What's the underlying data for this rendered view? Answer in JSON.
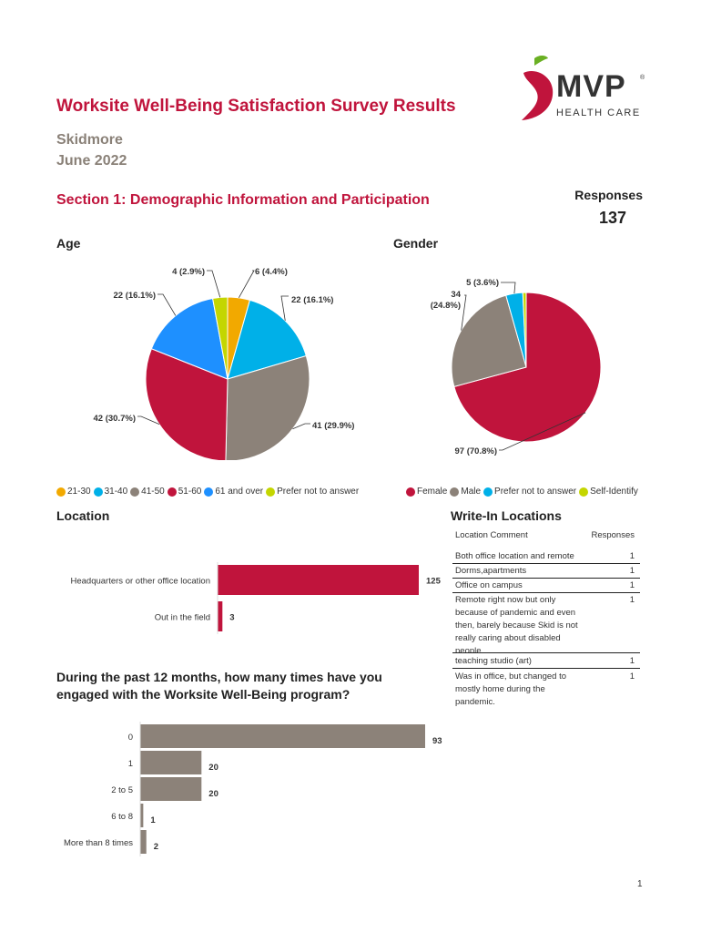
{
  "header": {
    "title": "Worksite Well-Being Satisfaction Survey Results",
    "org": "Skidmore",
    "date": "June 2022",
    "logo_text": "MVP",
    "logo_sub": "HEALTH CARE",
    "logo_mark": "®"
  },
  "section1": {
    "title": "Section 1: Demographic Information and Participation",
    "responses_label": "Responses",
    "responses_value": "137"
  },
  "age": {
    "title": "Age",
    "legend": [
      "21-30",
      "31-40",
      "41-50",
      "51-60",
      "61 and over",
      "Prefer not to answer"
    ]
  },
  "gender": {
    "title": "Gender",
    "legend": [
      "Female",
      "Male",
      "Prefer not to answer",
      "Self-Identify"
    ]
  },
  "location": {
    "title": "Location"
  },
  "engagement": {
    "title_line1": "During the past 12 months, how many times have you",
    "title_line2": "engaged with the Worksite Well-Being program?"
  },
  "writein": {
    "title": "Write-In Locations",
    "col_comment": "Location Comment",
    "col_responses": "Responses",
    "rows": [
      {
        "comment": "Both office location and remote",
        "count": "1"
      },
      {
        "comment": "Dorms,apartments",
        "count": "1"
      },
      {
        "comment": "Office on campus",
        "count": "1"
      },
      {
        "comment": "Remote right now but only because of pandemic and even then, barely because Skid is not really caring about disabled people",
        "count": "1"
      },
      {
        "comment": "teaching studio (art)",
        "count": "1"
      },
      {
        "comment": "Was in office, but changed to mostly home during the pandemic.",
        "count": "1"
      }
    ]
  },
  "page_number": "1",
  "colors": {
    "red": "#c0143c",
    "grey": "#8c8279",
    "cyan": "#00b0e8",
    "blue": "#1e90ff",
    "orange": "#f2a900",
    "yellow_green": "#c4d600"
  },
  "chart_data": [
    {
      "type": "pie",
      "title": "Age",
      "series": [
        {
          "label": "21-30",
          "value": 6,
          "label_text": "6 (4.4%)",
          "color": "#f2a900"
        },
        {
          "label": "31-40",
          "value": 22,
          "label_text": "22 (16.1%)",
          "color": "#00b0e8"
        },
        {
          "label": "41-50",
          "value": 41,
          "label_text": "41 (29.9%)",
          "color": "#8c8279"
        },
        {
          "label": "51-60",
          "value": 42,
          "label_text": "42 (30.7%)",
          "color": "#c0143c"
        },
        {
          "label": "61 and over",
          "value": 22,
          "label_text": "22 (16.1%)",
          "color": "#1e90ff"
        },
        {
          "label": "Prefer not to answer",
          "value": 4,
          "label_text": "4 (2.9%)",
          "color": "#c4d600"
        }
      ],
      "legend_position": "bottom"
    },
    {
      "type": "pie",
      "title": "Gender",
      "series": [
        {
          "label": "Female",
          "value": 97,
          "label_text": "97 (70.8%)",
          "color": "#c0143c"
        },
        {
          "label": "Male",
          "value": 34,
          "label_text": "34 (24.8%)",
          "color": "#8c8279"
        },
        {
          "label": "Prefer not to answer",
          "value": 5,
          "label_text": "5 (3.6%)",
          "color": "#00b0e8"
        },
        {
          "label": "Self-Identify",
          "value": 1,
          "label_text": "",
          "color": "#c4d600"
        }
      ],
      "legend_position": "bottom"
    },
    {
      "type": "bar",
      "orientation": "horizontal",
      "title": "Location",
      "categories": [
        "Headquarters or other office location",
        "Out in the field"
      ],
      "values": [
        125,
        3
      ],
      "color": "#c0143c"
    },
    {
      "type": "bar",
      "orientation": "horizontal",
      "title": "During the past 12 months, how many times have you engaged with the Worksite Well-Being program?",
      "categories": [
        "0",
        "1",
        "2 to 5",
        "6 to 8",
        "More than 8 times"
      ],
      "values": [
        93,
        20,
        20,
        1,
        2
      ],
      "color": "#8c8279"
    }
  ]
}
